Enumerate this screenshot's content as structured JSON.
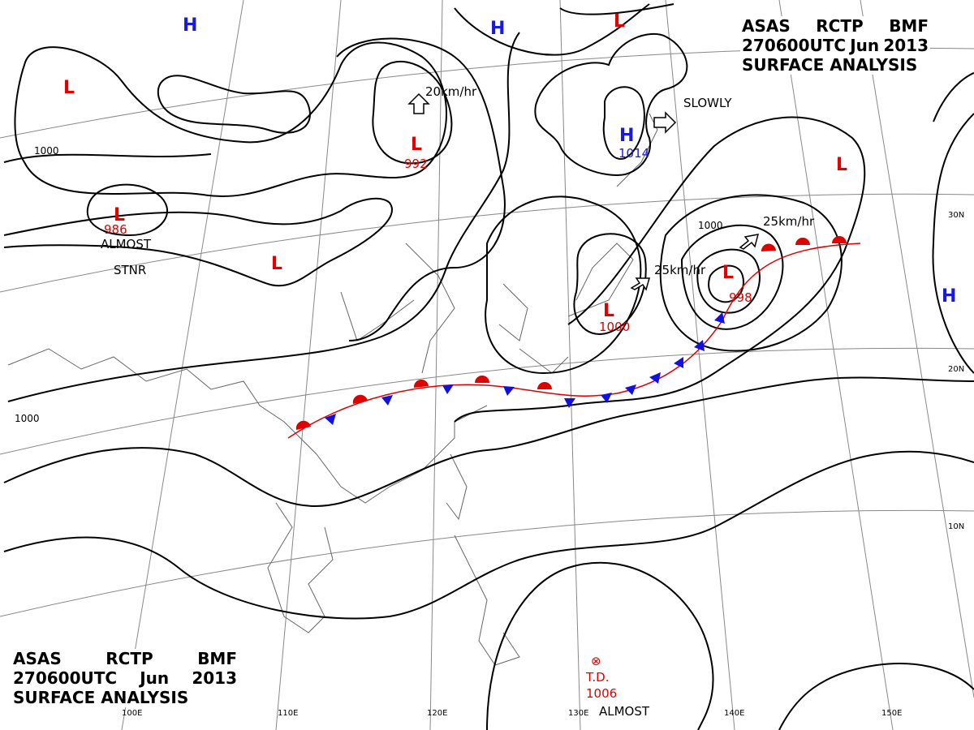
{
  "header": {
    "office": "ASAS",
    "station": "RCTP",
    "issuer": "BMF",
    "time": "270600UTC",
    "month": "Jun",
    "year": "2013",
    "type": "SURFACE ANALYSIS"
  },
  "colors": {
    "high": "#1a1adc",
    "low": "#e00000",
    "warm_front": "#e00000",
    "cold_front": "#1010e0",
    "isobar": "#000000",
    "grid": "#888888"
  },
  "highs": [
    {
      "label": "H"
    },
    {
      "label": "H"
    },
    {
      "label": "H",
      "value": "1014"
    },
    {
      "label": "H"
    }
  ],
  "lows": [
    {
      "label": "L"
    },
    {
      "label": "L",
      "value": "992"
    },
    {
      "label": "L",
      "value": "986"
    },
    {
      "label": "L"
    },
    {
      "label": "L"
    },
    {
      "label": "L",
      "value": "1000"
    },
    {
      "label": "L",
      "value": "998"
    },
    {
      "label": "L"
    }
  ],
  "motions": [
    {
      "text": "20km/hr"
    },
    {
      "text": "SLOWLY"
    },
    {
      "text": "25km/hr"
    },
    {
      "text": "25km/hr"
    }
  ],
  "notes": {
    "almost_stnr_1": [
      "ALMOST",
      "STNR"
    ],
    "almost_stnr_2": "ALMOST",
    "td": "T.D.",
    "td_pressure": "1006"
  },
  "isobar_labels": [
    "1000",
    "1000",
    "1000"
  ],
  "lon_labels": [
    "110E",
    "120E",
    "130E",
    "140E",
    "150E",
    "100E"
  ],
  "lat_labels": [
    "30N",
    "20N",
    "10N"
  ]
}
